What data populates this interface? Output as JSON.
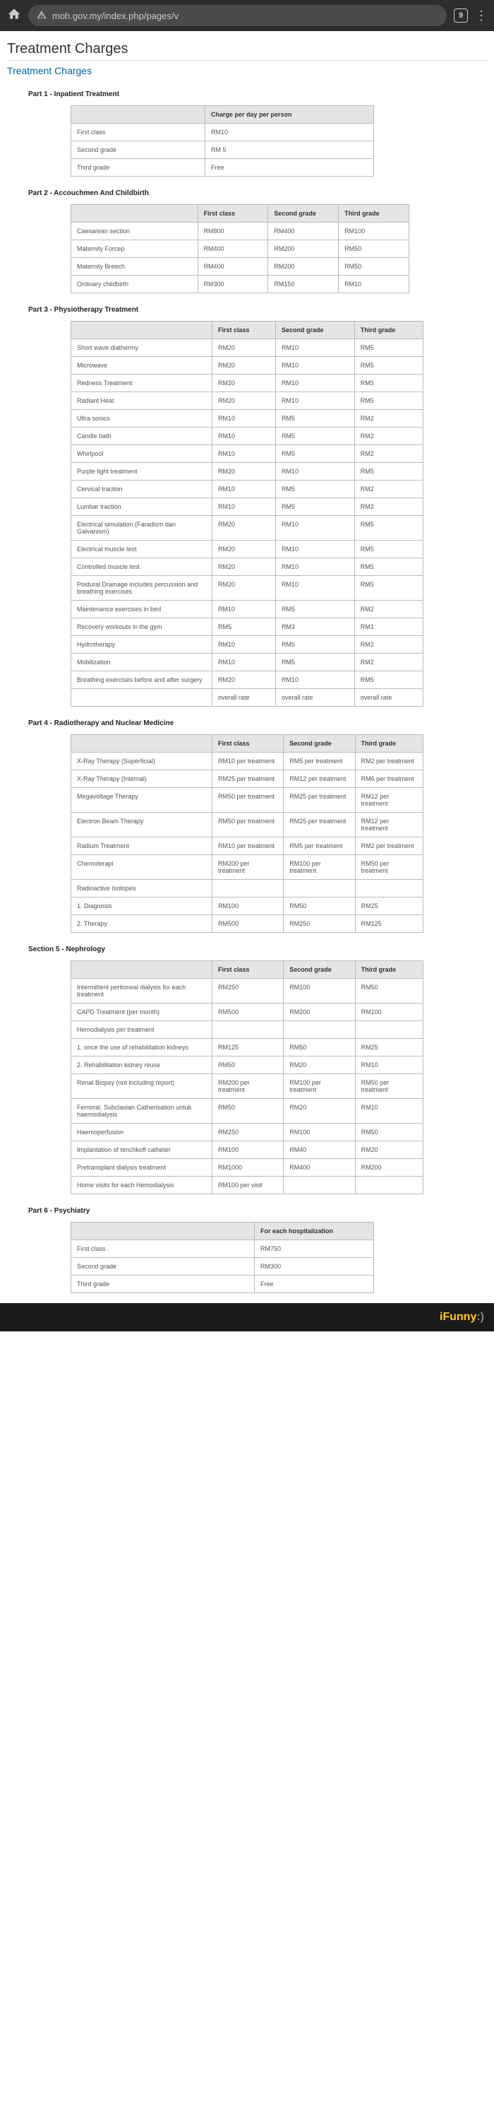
{
  "browser": {
    "url": "moh.gov.my/index.php/pages/v",
    "tabs": "9"
  },
  "titles": {
    "main": "Treatment Charges",
    "sub": "Treatment Charges"
  },
  "p1": {
    "title": "Part 1 - Inpatient Treatment",
    "header": "Charge per day per person",
    "rows": [
      [
        "First class",
        "RM10"
      ],
      [
        "Second grade",
        "RM 5"
      ],
      [
        "Third grade",
        "Free"
      ]
    ]
  },
  "p2": {
    "title": "Part 2 - Accouchmen And Childbirth",
    "h": [
      "",
      "First class",
      "Second grade",
      "Third grade"
    ],
    "rows": [
      [
        "Caesarean section",
        "RM800",
        "RM400",
        "RM100"
      ],
      [
        "Maternity Forcep",
        "RM400",
        "RM200",
        "RM50"
      ],
      [
        "Maternity Breech",
        "RM400",
        "RM200",
        "RM50"
      ],
      [
        "Ordinary childbirth",
        "RM300",
        "RM150",
        "RM10"
      ]
    ]
  },
  "p3": {
    "title": "Part 3 - Physiotherapy Treatment",
    "h": [
      "",
      "First class",
      "Second grade",
      "Third grade"
    ],
    "rows": [
      [
        "Short wave diathermy",
        "RM20",
        "RM10",
        "RM5"
      ],
      [
        "Microwave",
        "RM20",
        "RM10",
        "RM5"
      ],
      [
        "Redness Treatment",
        "RM20",
        "RM10",
        "RM5"
      ],
      [
        "Radiant Heat",
        "RM20",
        "RM10",
        "RM5"
      ],
      [
        "Ultra sonics",
        "RM10",
        "RM5",
        "RM2"
      ],
      [
        "Candle bath",
        "RM10",
        "RM5",
        "RM2"
      ],
      [
        "Whirlpool",
        "RM10",
        "RM5",
        "RM2"
      ],
      [
        "Purple light treatment",
        "RM20",
        "RM10",
        "RM5"
      ],
      [
        "Cervical traction",
        "RM10",
        "RM5",
        "RM2"
      ],
      [
        "Lumbar traction",
        "RM10",
        "RM5",
        "RM2"
      ],
      [
        "Electrical simulation (Faradism dan Galvanism)",
        "RM20",
        "RM10",
        "RM5"
      ],
      [
        "Electrical muscle test",
        "RM20",
        "RM10",
        "RM5"
      ],
      [
        "Controlled muscle test",
        "RM20",
        "RM10",
        "RM5"
      ],
      [
        "Postural Drainage includes percussion and breathing exercises",
        "RM20",
        "RM10",
        "RM5"
      ],
      [
        "Maintenance exercises in bed",
        "RM10",
        "RM5",
        "RM2"
      ],
      [
        "Recovery workouts in the gym",
        "RM5",
        "RM3",
        "RM1"
      ],
      [
        "Hydrotherapy",
        "RM10",
        "RM5",
        "RM2"
      ],
      [
        "Mobilization",
        "RM10",
        "RM5",
        "RM2"
      ],
      [
        "Breathing exercises before and after surgery",
        "RM20",
        "RM10",
        "RM5"
      ],
      [
        "",
        "overall rate",
        "overall rate",
        "overall rate"
      ]
    ]
  },
  "p4": {
    "title": "Part 4 - Radiotherapy and Nuclear Medicine",
    "h": [
      "",
      "First class",
      "Second grade",
      "Third grade"
    ],
    "rows": [
      [
        "X-Ray Therapy (Superficial)",
        "RM10 per treatment",
        "RM5 per treatment",
        "RM2 per treatment"
      ],
      [
        "X-Ray Therapy (Internal)",
        "RM25 per treatment",
        "RM12 per treatment",
        "RM6 per treatment"
      ],
      [
        "Megavoltage Therapy",
        "RM50 per treatment",
        "RM25 per treatment",
        "RM12 per treatment"
      ],
      [
        "Electron Beam Therapy",
        "RM50 per treatment",
        "RM25 per treatment",
        "RM12 per treatment"
      ],
      [
        "Radium Treatment",
        "RM10 per treatment",
        "RM5 per treatment",
        "RM2 per treatment"
      ],
      [
        "Chemoterapi",
        "RM200 per treatment",
        "RM100 per treatment",
        "RM50 per treatment"
      ],
      [
        "Radioactive Isotopes",
        "",
        "",
        ""
      ],
      [
        "1. Diagnosis",
        "RM100",
        "RM50",
        "RM25"
      ],
      [
        "2. Therapy",
        "RM500",
        "RM250",
        "RM125"
      ]
    ]
  },
  "p5": {
    "title": "Section 5 - Nephrology",
    "h": [
      "",
      "First class",
      "Second grade",
      "Third grade"
    ],
    "rows": [
      [
        "Intermittent peritoneal dialysis for each treatment",
        "RM250",
        "RM100",
        "RM50"
      ],
      [
        "CAPD Treatment (per month)",
        "RM500",
        "RM200",
        "RM100"
      ],
      [
        "Hemodialysis per treatment",
        "",
        "",
        ""
      ],
      [
        "1. once the use of rehabilitation kidneys",
        "RM125",
        "RM50",
        "RM25"
      ],
      [
        "2. Rehabilitation kidney reuse",
        "RM50",
        "RM20",
        "RM10"
      ],
      [
        "Renal Biopsy (not including report)",
        "RM200 per treatment",
        "RM100 per treatment",
        "RM50 per treatment"
      ],
      [
        "Femoral. Subclavian Catherisation untuk haemodialysis",
        "RM50",
        "RM20",
        "RM10"
      ],
      [
        "Haemoperfusion",
        "RM250",
        "RM100",
        "RM50"
      ],
      [
        "Implantation of tenchkoff catheter",
        "RM100",
        "RM40",
        "RM20"
      ],
      [
        "Pretransplant dialysis treatment",
        "RM1000",
        "RM400",
        "RM200"
      ],
      [
        "Home visits for each Hemodialysis",
        "RM100 per visit",
        "",
        ""
      ]
    ]
  },
  "p6": {
    "title": "Part 6 - Psychiatry",
    "header": "For each hospitalization",
    "rows": [
      [
        "First class",
        "RM750"
      ],
      [
        "Second grade",
        "RM300"
      ],
      [
        "Third grade",
        "Free"
      ]
    ]
  },
  "footer": {
    "brand": "iFunny",
    "emoji": ":)"
  }
}
